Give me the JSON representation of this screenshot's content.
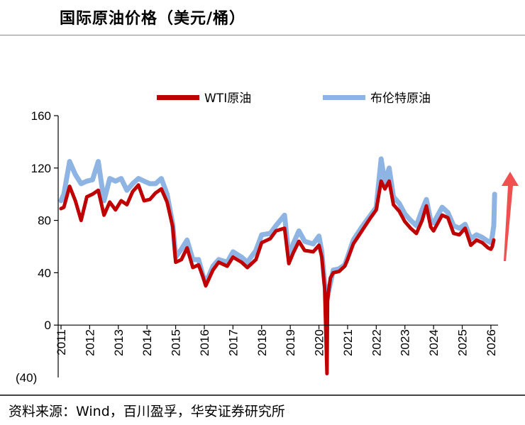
{
  "header": {
    "title": "国际原油价格（美元/桶）"
  },
  "footer": {
    "source": "资料来源：Wind，百川盈孚，华安证券研究所"
  },
  "colors": {
    "wti": "#c00000",
    "brent": "#8eb4e3",
    "arrow": "#f05050",
    "axis": "#000000"
  },
  "chart_data": {
    "type": "line",
    "title": "国际原油价格（美元/桶）",
    "xlabel": "",
    "ylabel": "",
    "ylim": [
      -40,
      160
    ],
    "xlim": [
      2011.0,
      2026.2
    ],
    "y_ticks": [
      {
        "value": 160,
        "label": "160"
      },
      {
        "value": 120,
        "label": "120"
      },
      {
        "value": 80,
        "label": "80"
      },
      {
        "value": 40,
        "label": "40"
      },
      {
        "value": 0,
        "label": "0"
      },
      {
        "value": -40,
        "label": "(40)"
      }
    ],
    "x_ticks": [
      "2011",
      "2012",
      "2013",
      "2014",
      "2015",
      "2016",
      "2017",
      "2018",
      "2019",
      "2020",
      "2021",
      "2022",
      "2023",
      "2024",
      "2025",
      "2026"
    ],
    "legend": {
      "position": "top",
      "entries": [
        "WTI原油",
        "布伦特原油"
      ]
    },
    "grid": false,
    "annotation": {
      "type": "upward-arrow",
      "near": "2026"
    },
    "series": [
      {
        "name": "WTI原油",
        "x": [
          2011.0,
          2011.1,
          2011.3,
          2011.5,
          2011.7,
          2011.9,
          2012.1,
          2012.3,
          2012.5,
          2012.7,
          2012.9,
          2013.1,
          2013.3,
          2013.5,
          2013.7,
          2013.9,
          2014.1,
          2014.3,
          2014.5,
          2014.7,
          2014.9,
          2015.0,
          2015.2,
          2015.4,
          2015.6,
          2015.8,
          2015.95,
          2016.05,
          2016.3,
          2016.5,
          2016.8,
          2017.0,
          2017.3,
          2017.5,
          2017.8,
          2018.0,
          2018.3,
          2018.5,
          2018.8,
          2018.95,
          2019.1,
          2019.3,
          2019.5,
          2019.8,
          2020.0,
          2020.1,
          2020.2,
          2020.28,
          2020.3,
          2020.33,
          2020.4,
          2020.5,
          2020.7,
          2020.9,
          2021.0,
          2021.2,
          2021.5,
          2021.8,
          2022.0,
          2022.17,
          2022.3,
          2022.45,
          2022.6,
          2022.8,
          2023.0,
          2023.2,
          2023.4,
          2023.6,
          2023.75,
          2023.9,
          2024.0,
          2024.3,
          2024.5,
          2024.7,
          2024.9,
          2025.1,
          2025.3,
          2025.5,
          2025.7,
          2025.9,
          2026.0,
          2026.05,
          2026.1
        ],
        "y": [
          89,
          90,
          106,
          95,
          80,
          98,
          100,
          103,
          84,
          94,
          88,
          95,
          92,
          102,
          107,
          95,
          96,
          101,
          104,
          94,
          75,
          48,
          50,
          59,
          44,
          46,
          37,
          30,
          42,
          48,
          45,
          52,
          48,
          44,
          50,
          63,
          66,
          72,
          74,
          47,
          55,
          64,
          57,
          56,
          61,
          52,
          28,
          -37,
          18,
          25,
          36,
          40,
          41,
          45,
          50,
          62,
          72,
          82,
          88,
          110,
          104,
          110,
          92,
          87,
          79,
          74,
          70,
          80,
          91,
          75,
          72,
          84,
          82,
          70,
          69,
          74,
          61,
          65,
          63,
          59,
          58,
          60,
          65
        ]
      },
      {
        "name": "布伦特原油",
        "x": [
          2011.0,
          2011.1,
          2011.3,
          2011.5,
          2011.7,
          2011.9,
          2012.1,
          2012.3,
          2012.5,
          2012.7,
          2012.9,
          2013.1,
          2013.3,
          2013.5,
          2013.7,
          2013.9,
          2014.1,
          2014.3,
          2014.5,
          2014.7,
          2014.9,
          2015.0,
          2015.2,
          2015.4,
          2015.6,
          2015.8,
          2015.95,
          2016.05,
          2016.3,
          2016.5,
          2016.8,
          2017.0,
          2017.3,
          2017.5,
          2017.8,
          2018.0,
          2018.3,
          2018.5,
          2018.8,
          2018.95,
          2019.1,
          2019.3,
          2019.5,
          2019.8,
          2020.0,
          2020.1,
          2020.2,
          2020.3,
          2020.4,
          2020.5,
          2020.7,
          2020.9,
          2021.0,
          2021.2,
          2021.5,
          2021.8,
          2022.0,
          2022.17,
          2022.3,
          2022.45,
          2022.6,
          2022.8,
          2023.0,
          2023.2,
          2023.4,
          2023.6,
          2023.75,
          2023.9,
          2024.0,
          2024.3,
          2024.5,
          2024.7,
          2024.9,
          2025.1,
          2025.3,
          2025.5,
          2025.7,
          2025.9,
          2026.0,
          2026.05,
          2026.1,
          2026.13
        ],
        "y": [
          95,
          100,
          125,
          115,
          108,
          110,
          111,
          125,
          95,
          112,
          110,
          112,
          103,
          108,
          112,
          110,
          108,
          108,
          112,
          100,
          77,
          52,
          58,
          65,
          50,
          50,
          38,
          32,
          45,
          50,
          48,
          56,
          52,
          48,
          57,
          69,
          70,
          76,
          84,
          52,
          62,
          72,
          64,
          62,
          68,
          56,
          32,
          22,
          32,
          42,
          43,
          46,
          52,
          65,
          75,
          84,
          90,
          127,
          109,
          120,
          98,
          93,
          85,
          80,
          76,
          88,
          96,
          80,
          78,
          90,
          86,
          76,
          74,
          77,
          66,
          69,
          67,
          64,
          63,
          68,
          76,
          100
        ]
      }
    ]
  }
}
